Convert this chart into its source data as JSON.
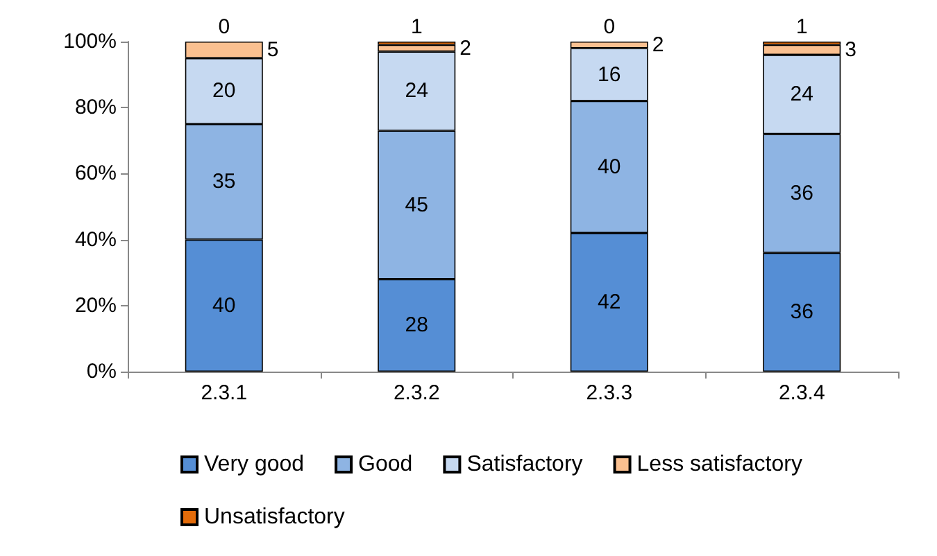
{
  "chart_data": {
    "type": "bar",
    "stacked": true,
    "categories": [
      "2.3.1",
      "2.3.2",
      "2.3.3",
      "2.3.4"
    ],
    "series": [
      {
        "name": "Very good",
        "color": "#558ed5",
        "values": [
          40,
          28,
          42,
          36
        ]
      },
      {
        "name": "Good",
        "color": "#8eb4e3",
        "values": [
          35,
          45,
          40,
          36
        ]
      },
      {
        "name": "Satisfactory",
        "color": "#c6d9f1",
        "values": [
          20,
          24,
          16,
          24
        ]
      },
      {
        "name": "Less satisfactory",
        "color": "#fac090",
        "values": [
          5,
          2,
          2,
          3
        ]
      },
      {
        "name": "Unsatisfactory",
        "color": "#e46c0a",
        "values": [
          0,
          1,
          0,
          1
        ]
      }
    ],
    "ylim": [
      0,
      100
    ],
    "yticks": [
      {
        "value": 0,
        "label": "0%"
      },
      {
        "value": 20,
        "label": "20%"
      },
      {
        "value": 40,
        "label": "40%"
      },
      {
        "value": 60,
        "label": "60%"
      },
      {
        "value": 80,
        "label": "80%"
      },
      {
        "value": 100,
        "label": "100%"
      }
    ],
    "data_labels": true,
    "legend": "bottom",
    "grid": false
  }
}
